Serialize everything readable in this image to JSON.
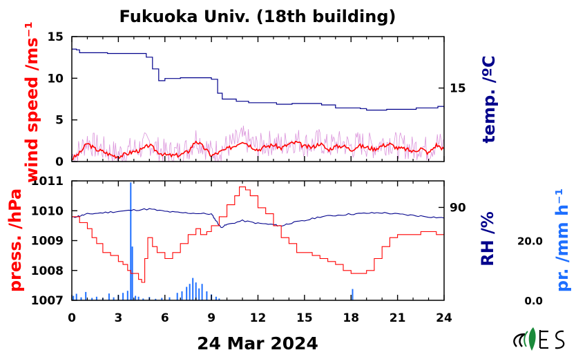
{
  "title": "Fukuoka Univ. (18th building)",
  "date_label": "24 Mar 2024",
  "colors": {
    "red": "#ff0000",
    "navy": "#00008b",
    "blue": "#1e6fff",
    "magenta": "#cc66cc",
    "logo_green": "#1a8a3a"
  },
  "chart_data": [
    {
      "type": "line",
      "panel": "top",
      "title": "Fukuoka Univ. (18th building)",
      "x_range": [
        0,
        24
      ],
      "x_ticks": [
        "0",
        "3",
        "6",
        "9",
        "12",
        "15",
        "18",
        "21",
        "24"
      ],
      "left_axis": {
        "label": "wind speed /ms⁻¹",
        "range": [
          0,
          15
        ],
        "ticks": [
          "0",
          "5",
          "10",
          "15"
        ]
      },
      "right_axis": {
        "label": "temp. /ºC",
        "range": [
          5,
          22
        ],
        "ticks": [
          "15"
        ]
      },
      "series": [
        {
          "axis": "right",
          "x": [
            0,
            0.3,
            0.5,
            2.3,
            4.6,
            4.8,
            5.2,
            5.6,
            6.0,
            7.0,
            8.4,
            9.0,
            9.4,
            9.7,
            10.6,
            11.4,
            13.2,
            14.2,
            16.1,
            17.0,
            18.6,
            19.0,
            20.3,
            21.2,
            22.2,
            23.6,
            24
          ],
          "y": [
            20.3,
            20.2,
            19.8,
            19.7,
            19.7,
            19.2,
            17.6,
            16.0,
            16.3,
            16.4,
            16.4,
            16.2,
            14.3,
            13.5,
            13.2,
            13.0,
            12.8,
            12.9,
            12.7,
            12.3,
            12.2,
            12.0,
            12.1,
            12.1,
            12.3,
            12.5,
            12.2
          ]
        },
        {
          "axis": "left",
          "x": [
            0,
            0.5,
            1.0,
            1.5,
            2.0,
            2.5,
            3.0,
            3.5,
            4.0,
            4.5,
            5.0,
            5.5,
            6.0,
            6.5,
            7.0,
            7.5,
            8.0,
            8.5,
            9.0,
            9.5,
            10.0,
            10.5,
            11.0,
            11.5,
            12.0,
            12.5,
            13.0,
            13.5,
            14.0,
            14.5,
            15.0,
            15.5,
            16.0,
            16.5,
            17.0,
            17.5,
            18.0,
            18.5,
            19.0,
            19.5,
            20.0,
            20.5,
            21.0,
            21.5,
            22.0,
            22.5,
            23.0,
            23.5,
            24.0
          ],
          "y": [
            0.3,
            1.0,
            2.2,
            1.5,
            1.2,
            0.8,
            0.6,
            0.9,
            1.2,
            1.4,
            2.0,
            1.2,
            0.8,
            0.7,
            0.8,
            1.2,
            2.5,
            1.7,
            0.7,
            1.1,
            1.5,
            1.9,
            2.5,
            1.9,
            1.4,
            1.8,
            2.0,
            1.6,
            2.1,
            2.3,
            1.8,
            1.7,
            2.2,
            1.4,
            1.8,
            1.9,
            1.4,
            1.9,
            1.7,
            1.5,
            1.9,
            2.1,
            1.6,
            1.5,
            1.2,
            1.6,
            1.0,
            2.0,
            1.5
          ]
        }
      ]
    },
    {
      "type": "line",
      "panel": "bottom",
      "x_range": [
        0,
        24
      ],
      "left_axis": {
        "label": "press. /hPa",
        "range": [
          1007,
          1011
        ],
        "ticks": [
          "1007",
          "1008",
          "1009",
          "1010",
          "1011"
        ]
      },
      "right_axis": {
        "label": "RH /%",
        "range": [
          55,
          100
        ],
        "ticks": [
          "90"
        ]
      },
      "far_right_axis": {
        "label": "pr. /mm h⁻¹",
        "range": [
          0,
          40
        ],
        "ticks": [
          "0.0",
          "20.0"
        ]
      },
      "series": [
        {
          "axis": "left",
          "x": [
            0,
            0.5,
            1.0,
            1.3,
            1.6,
            2.0,
            2.5,
            3.0,
            3.3,
            3.6,
            3.8,
            4.0,
            4.3,
            4.5,
            4.7,
            4.9,
            5.2,
            5.5,
            6.0,
            6.5,
            7.0,
            7.5,
            8.0,
            8.3,
            8.7,
            9.0,
            9.5,
            10.0,
            10.5,
            10.8,
            11.2,
            11.5,
            12.0,
            12.5,
            13.0,
            13.5,
            14.0,
            14.5,
            15.0,
            15.5,
            16.0,
            16.5,
            17.0,
            17.5,
            18.0,
            18.5,
            19.0,
            19.5,
            20.0,
            20.5,
            21.0,
            21.5,
            22.0,
            22.5,
            23.0,
            23.5,
            24.0
          ],
          "y": [
            1009.8,
            1009.6,
            1009.4,
            1009.1,
            1008.9,
            1008.6,
            1008.5,
            1008.3,
            1008.2,
            1008.0,
            1007.9,
            1007.9,
            1007.7,
            1007.6,
            1008.4,
            1009.1,
            1008.8,
            1008.6,
            1008.4,
            1008.6,
            1008.9,
            1009.2,
            1009.4,
            1009.2,
            1009.3,
            1009.5,
            1009.8,
            1010.2,
            1010.5,
            1010.8,
            1010.7,
            1010.5,
            1010.1,
            1009.9,
            1009.5,
            1009.1,
            1008.9,
            1008.6,
            1008.6,
            1008.5,
            1008.4,
            1008.3,
            1008.2,
            1008.0,
            1007.9,
            1007.9,
            1008.0,
            1008.4,
            1008.8,
            1009.1,
            1009.2,
            1009.2,
            1009.2,
            1009.3,
            1009.3,
            1009.2,
            1009.3
          ]
        },
        {
          "axis": "right",
          "x": [
            0,
            0.5,
            1,
            2,
            3,
            4,
            5,
            6,
            7,
            8,
            9,
            9.3,
            9.6,
            10,
            11,
            12,
            13,
            13.5,
            14,
            15,
            16,
            17,
            18,
            19,
            20,
            21,
            22,
            23,
            24
          ],
          "y": [
            86.2,
            86.8,
            87.5,
            88,
            88.5,
            89,
            89.4,
            88.5,
            88,
            87.8,
            87.5,
            85,
            82.5,
            83.5,
            85,
            84,
            83.5,
            83,
            84,
            85,
            86.5,
            87,
            87.5,
            87.8,
            88,
            87.5,
            87,
            86.5,
            86
          ]
        },
        {
          "axis": "far_right",
          "type": "bar",
          "name": "precipitation",
          "x": [
            0.1,
            0.3,
            0.6,
            0.9,
            1.3,
            1.6,
            2.0,
            2.4,
            2.7,
            3.0,
            3.3,
            3.6,
            3.8,
            3.9,
            4.1,
            4.3,
            4.6,
            5.0,
            5.4,
            5.8,
            6.3,
            6.8,
            7.1,
            7.4,
            7.6,
            7.8,
            8.0,
            8.2,
            8.4,
            8.7,
            9.0,
            9.3,
            9.5,
            18.1
          ],
          "y": [
            1.5,
            2.2,
            1.0,
            2.8,
            0.8,
            1.2,
            0.7,
            2.3,
            1.0,
            1.8,
            2.5,
            3.2,
            39.5,
            18.0,
            1.5,
            1.2,
            0.6,
            1.1,
            0.5,
            0.8,
            1.0,
            2.5,
            3.0,
            4.5,
            5.5,
            7.5,
            6.0,
            4.0,
            5.5,
            3.0,
            2.0,
            1.2,
            0.6,
            3.8
          ]
        }
      ]
    }
  ]
}
